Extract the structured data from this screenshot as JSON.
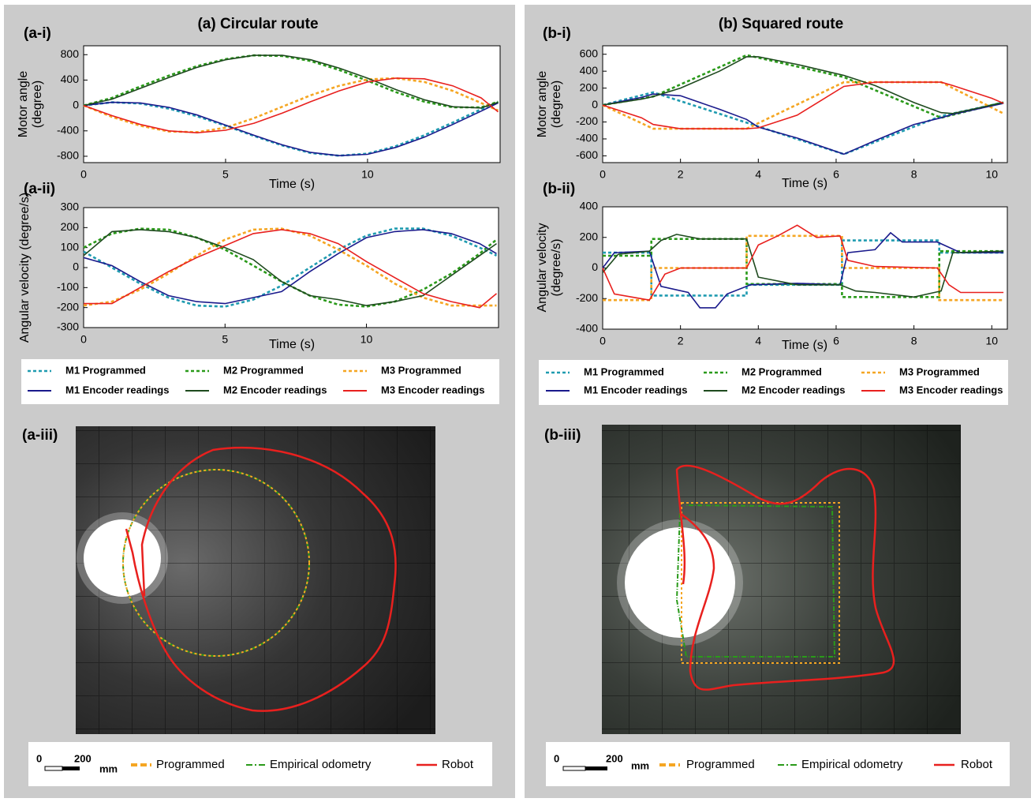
{
  "panels": [
    {
      "title": "(a) Circular route",
      "photo_label": "(a-iii)",
      "scale_labels": [
        "0",
        "200"
      ],
      "scale_unit": "mm",
      "legend": [
        "Programmed",
        "Empirical odometry",
        "Robot"
      ]
    },
    {
      "title": "(b) Squared route",
      "photo_label": "(b-iii)",
      "scale_labels": [
        "0",
        "200"
      ],
      "scale_unit": "mm",
      "legend": [
        "Programmed",
        "Empirical odometry",
        "Robot"
      ]
    }
  ],
  "chart_data": [
    {
      "type": "line",
      "label": "(a-i)",
      "x_label": "Time (s)",
      "y_label": [
        "Motor angle",
        "(degree)"
      ],
      "x": [
        0,
        1,
        2,
        3,
        4,
        5,
        6,
        7,
        8,
        9,
        10,
        11,
        12,
        13,
        14,
        14.6
      ],
      "xlim": [
        0,
        14.67
      ],
      "xticks": [
        0,
        5,
        10
      ],
      "ylim": [
        -900,
        940
      ],
      "yticks": [
        -800,
        -400,
        0,
        400,
        800
      ],
      "series": [
        {
          "color": "#1f9bb0",
          "style": "dashed",
          "values": [
            0,
            50,
            30,
            -50,
            -170,
            -320,
            -480,
            -630,
            -750,
            -790,
            -760,
            -640,
            -470,
            -270,
            -60,
            50
          ]
        },
        {
          "color": "#2a9a1a",
          "style": "dashed",
          "values": [
            0,
            120,
            300,
            470,
            620,
            730,
            790,
            780,
            700,
            560,
            390,
            210,
            60,
            -30,
            -30,
            60
          ]
        },
        {
          "color": "#f5a623",
          "style": "dashed",
          "values": [
            0,
            -180,
            -320,
            -410,
            -420,
            -350,
            -200,
            -20,
            160,
            310,
            410,
            430,
            370,
            230,
            40,
            -80
          ]
        },
        {
          "color": "#1a1a8c",
          "style": "solid",
          "values": [
            0,
            50,
            40,
            -30,
            -150,
            -310,
            -470,
            -620,
            -740,
            -790,
            -770,
            -660,
            -500,
            -300,
            -90,
            40
          ]
        },
        {
          "color": "#1e4a1e",
          "style": "solid",
          "values": [
            0,
            100,
            270,
            440,
            600,
            720,
            790,
            790,
            720,
            590,
            430,
            250,
            90,
            -20,
            -40,
            50
          ]
        },
        {
          "color": "#e8201e",
          "style": "solid",
          "values": [
            0,
            -160,
            -300,
            -400,
            -430,
            -390,
            -280,
            -120,
            60,
            230,
            370,
            430,
            420,
            310,
            120,
            -100
          ]
        }
      ]
    },
    {
      "type": "line",
      "label": "(a-ii)",
      "x_label": "Time (s)",
      "y_label": [
        "Angular velocity (degree/s)"
      ],
      "x": [
        0,
        1,
        2,
        3,
        4,
        5,
        6,
        7,
        8,
        9,
        10,
        11,
        12,
        13,
        14,
        14.6
      ],
      "xlim": [
        0,
        14.67
      ],
      "xticks": [
        0,
        5,
        10
      ],
      "ylim": [
        -300,
        300
      ],
      "yticks": [
        -300,
        -200,
        -100,
        0,
        100,
        200,
        300
      ],
      "series": [
        {
          "name": "M1 Programmed",
          "color": "#1f9bb0",
          "style": "dashed",
          "values": [
            80,
            0,
            -80,
            -150,
            -190,
            -195,
            -160,
            -90,
            0,
            90,
            160,
            195,
            195,
            160,
            100,
            60
          ]
        },
        {
          "name": "M2 Programmed",
          "color": "#2a9a1a",
          "style": "dashed",
          "values": [
            100,
            170,
            195,
            190,
            150,
            90,
            10,
            -70,
            -140,
            -185,
            -195,
            -170,
            -110,
            -30,
            70,
            140
          ]
        },
        {
          "name": "M3 Programmed",
          "color": "#f5a623",
          "style": "dashed",
          "values": [
            -190,
            -170,
            -110,
            -30,
            60,
            140,
            190,
            195,
            160,
            90,
            10,
            -80,
            -150,
            -190,
            -190,
            -190
          ]
        },
        {
          "name": "M1 Encoder readings",
          "color": "#1a1a8c",
          "style": "solid",
          "values": [
            50,
            10,
            -70,
            -140,
            -170,
            -180,
            -150,
            -120,
            -20,
            70,
            150,
            180,
            190,
            170,
            120,
            70
          ]
        },
        {
          "name": "M2 Encoder readings",
          "color": "#1e4a1e",
          "style": "solid",
          "values": [
            60,
            180,
            190,
            180,
            150,
            100,
            40,
            -70,
            -140,
            -160,
            -190,
            -170,
            -140,
            -40,
            60,
            120
          ]
        },
        {
          "name": "M3 Encoder readings",
          "color": "#e8201e",
          "style": "solid",
          "values": [
            -180,
            -180,
            -100,
            -20,
            50,
            110,
            170,
            190,
            170,
            120,
            30,
            -50,
            -130,
            -170,
            -200,
            -130
          ]
        }
      ]
    },
    {
      "type": "line",
      "label": "(b-i)",
      "x_label": "Time (s)",
      "y_label": [
        "Motor angle",
        "(degree)"
      ],
      "x": [
        0,
        1,
        1.3,
        2,
        3,
        3.7,
        4,
        5,
        6.2,
        7,
        8,
        8.7,
        9,
        10,
        10.3
      ],
      "xlim": [
        0,
        10.4
      ],
      "xticks": [
        0,
        2,
        4,
        6,
        8,
        10
      ],
      "ylim": [
        -680,
        700
      ],
      "yticks": [
        -600,
        -400,
        -200,
        0,
        200,
        400,
        600
      ],
      "series": [
        {
          "color": "#1f9bb0",
          "style": "dashed",
          "values": [
            0,
            115,
            150,
            46,
            -103,
            -208,
            -253,
            -402,
            -580,
            -436,
            -256,
            -130,
            -100,
            0,
            30
          ]
        },
        {
          "color": "#2a9a1a",
          "style": "dashed",
          "values": [
            0,
            77,
            100,
            243,
            447,
            590,
            559,
            455,
            330,
            176,
            -16,
            -150,
            -116,
            0,
            30
          ]
        },
        {
          "color": "#f5a623",
          "style": "dashed",
          "values": [
            0,
            -215,
            -280,
            -280,
            -280,
            -280,
            -214,
            6,
            270,
            270,
            270,
            270,
            200,
            -30,
            -100
          ]
        },
        {
          "color": "#1a1a8c",
          "style": "solid",
          "values": [
            0,
            90,
            130,
            110,
            -50,
            -170,
            -260,
            -390,
            -580,
            -420,
            -230,
            -150,
            -110,
            -10,
            20
          ]
        },
        {
          "color": "#1e4a1e",
          "style": "solid",
          "values": [
            0,
            70,
            100,
            200,
            400,
            570,
            570,
            480,
            350,
            230,
            30,
            -90,
            -100,
            0,
            30
          ]
        },
        {
          "color": "#e8201e",
          "style": "solid",
          "values": [
            0,
            -150,
            -230,
            -280,
            -280,
            -280,
            -270,
            -120,
            220,
            270,
            270,
            270,
            230,
            80,
            20
          ]
        }
      ]
    },
    {
      "type": "line",
      "label": "(b-ii)",
      "x_label": "Time (s)",
      "y_label": [
        "Angular velocity",
        "(degree/s)"
      ],
      "xlim": [
        0,
        10.4
      ],
      "xticks": [
        0,
        2,
        4,
        6,
        8,
        10
      ],
      "ylim": [
        -400,
        400
      ],
      "yticks": [
        -400,
        -200,
        0,
        200,
        400
      ],
      "series": [
        {
          "name": "M1 Programmed",
          "color": "#1f9bb0",
          "style": "dashed",
          "x": [
            0,
            1.25,
            1.25,
            3.7,
            3.7,
            6.15,
            6.15,
            8.65,
            8.65,
            10.3
          ],
          "values": [
            100,
            100,
            -180,
            -180,
            -110,
            -110,
            180,
            180,
            100,
            100
          ]
        },
        {
          "name": "M2 Programmed",
          "color": "#2a9a1a",
          "style": "dashed",
          "x": [
            0,
            1.25,
            1.25,
            3.7,
            3.7,
            6.15,
            6.15,
            8.65,
            8.65,
            10.3
          ],
          "values": [
            80,
            80,
            190,
            190,
            -105,
            -105,
            -190,
            -190,
            110,
            110
          ]
        },
        {
          "name": "M3 Programmed",
          "color": "#f5a623",
          "style": "dashed",
          "x": [
            0,
            1.25,
            1.25,
            3.7,
            3.7,
            6.15,
            6.15,
            8.65,
            8.65,
            10.3
          ],
          "values": [
            -210,
            -210,
            0,
            0,
            210,
            210,
            0,
            0,
            -210,
            -210
          ]
        },
        {
          "name": "M1 Encoder readings",
          "color": "#1a1a8c",
          "style": "solid",
          "x": [
            0,
            0.3,
            1.2,
            1.5,
            2.2,
            2.5,
            2.9,
            3.2,
            3.8,
            5,
            6.1,
            6.3,
            7,
            7.4,
            7.7,
            8.6,
            9.2,
            10.3
          ],
          "values": [
            0,
            100,
            110,
            -120,
            -160,
            -260,
            -260,
            -170,
            -110,
            -100,
            -110,
            100,
            120,
            230,
            170,
            170,
            100,
            100
          ]
        },
        {
          "name": "M2 Encoder readings",
          "color": "#1e4a1e",
          "style": "solid",
          "x": [
            0,
            0.4,
            1.2,
            1.5,
            1.9,
            2.5,
            3.7,
            4,
            5,
            6.1,
            6.5,
            7,
            8,
            8.7,
            9,
            10.3
          ],
          "values": [
            -30,
            90,
            110,
            180,
            220,
            190,
            190,
            -60,
            -110,
            -110,
            -150,
            -160,
            -190,
            -150,
            100,
            110
          ]
        },
        {
          "name": "M3 Encoder readings",
          "color": "#e8201e",
          "style": "solid",
          "x": [
            0,
            0.3,
            1.2,
            1.6,
            2,
            3.7,
            4,
            4.5,
            5,
            5.5,
            6.1,
            6.3,
            7,
            8.6,
            8.9,
            9.2,
            10.3
          ],
          "values": [
            0,
            -170,
            -210,
            -40,
            0,
            0,
            150,
            210,
            280,
            200,
            210,
            50,
            10,
            0,
            -110,
            -160,
            -160
          ]
        }
      ]
    }
  ]
}
